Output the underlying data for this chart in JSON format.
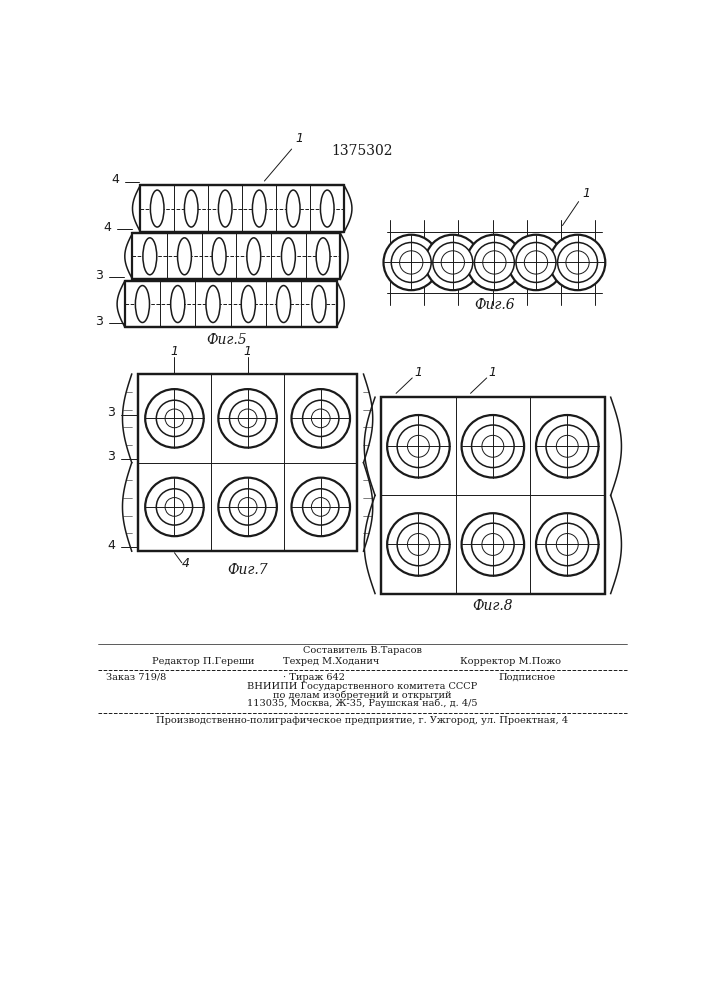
{
  "patent_number": "1375302",
  "bg_color": "#ffffff",
  "line_color": "#1a1a1a",
  "fig5_label": "Фиг.5",
  "fig6_label": "Фиг.6",
  "fig7_label": "Фиг.7",
  "fig8_label": "Фиг.8"
}
